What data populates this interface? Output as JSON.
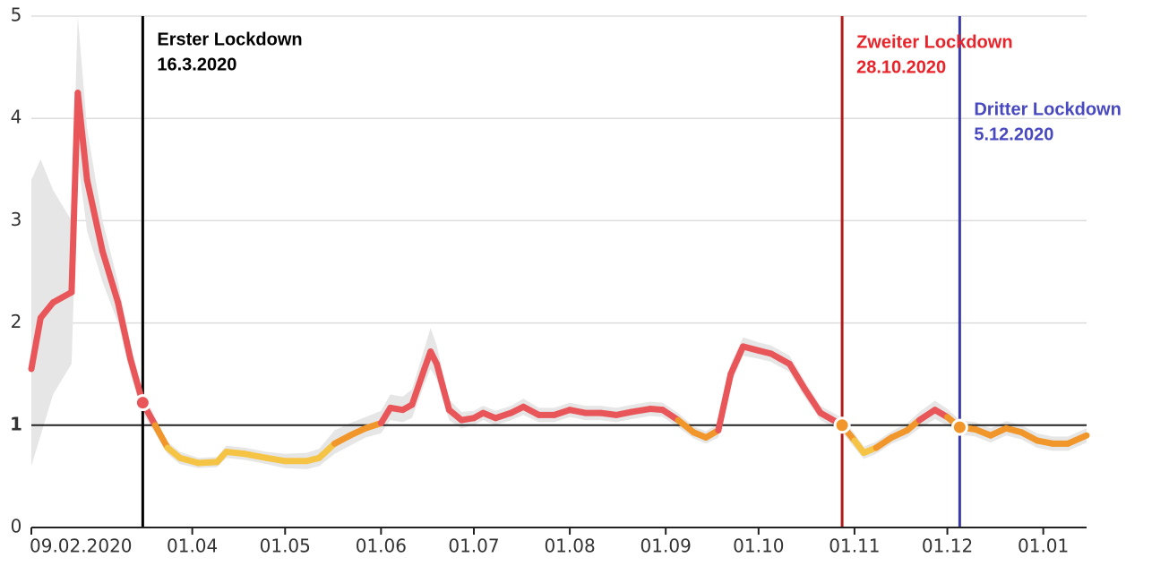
{
  "chart_data": {
    "type": "line",
    "x": [
      "2020-02-09",
      "2020-02-12",
      "2020-02-16",
      "2020-02-22",
      "2020-02-24",
      "2020-02-27",
      "2020-03-03",
      "2020-03-08",
      "2020-03-12",
      "2020-03-16",
      "2020-03-20",
      "2020-03-24",
      "2020-03-28",
      "2020-04-03",
      "2020-04-09",
      "2020-04-12",
      "2020-04-18",
      "2020-04-25",
      "2020-05-01",
      "2020-05-08",
      "2020-05-12",
      "2020-05-17",
      "2020-05-22",
      "2020-05-27",
      "2020-06-01",
      "2020-06-04",
      "2020-06-08",
      "2020-06-11",
      "2020-06-15",
      "2020-06-17",
      "2020-06-19",
      "2020-06-23",
      "2020-06-27",
      "2020-07-01",
      "2020-07-04",
      "2020-07-08",
      "2020-07-13",
      "2020-07-17",
      "2020-07-22",
      "2020-07-27",
      "2020-08-01",
      "2020-08-06",
      "2020-08-11",
      "2020-08-16",
      "2020-08-21",
      "2020-08-27",
      "2020-08-31",
      "2020-09-05",
      "2020-09-10",
      "2020-09-14",
      "2020-09-18",
      "2020-09-22",
      "2020-09-26",
      "2020-10-01",
      "2020-10-05",
      "2020-10-08",
      "2020-10-11",
      "2020-10-16",
      "2020-10-21",
      "2020-10-28",
      "2020-11-01",
      "2020-11-04",
      "2020-11-08",
      "2020-11-13",
      "2020-11-18",
      "2020-11-22",
      "2020-11-27",
      "2020-12-01",
      "2020-12-05",
      "2020-12-10",
      "2020-12-15",
      "2020-12-20",
      "2020-12-25",
      "2020-12-30",
      "2021-01-04",
      "2021-01-09",
      "2021-01-15"
    ],
    "values": [
      1.55,
      2.05,
      2.2,
      2.3,
      4.25,
      3.4,
      2.7,
      2.2,
      1.65,
      1.22,
      1.0,
      0.78,
      0.68,
      0.63,
      0.64,
      0.74,
      0.72,
      0.68,
      0.65,
      0.65,
      0.68,
      0.82,
      0.9,
      0.97,
      1.02,
      1.17,
      1.15,
      1.2,
      1.55,
      1.72,
      1.6,
      1.15,
      1.05,
      1.07,
      1.12,
      1.07,
      1.12,
      1.18,
      1.1,
      1.1,
      1.15,
      1.12,
      1.12,
      1.1,
      1.13,
      1.16,
      1.15,
      1.05,
      0.93,
      0.88,
      0.95,
      1.5,
      1.77,
      1.73,
      1.7,
      1.65,
      1.6,
      1.35,
      1.12,
      1.0,
      0.85,
      0.73,
      0.78,
      0.88,
      0.95,
      1.05,
      1.15,
      1.08,
      0.98,
      0.96,
      0.9,
      0.97,
      0.93,
      0.85,
      0.82,
      0.82,
      0.9
    ],
    "lower": [
      0.6,
      0.9,
      1.3,
      1.6,
      3.6,
      2.9,
      2.4,
      2.0,
      1.5,
      1.12,
      0.92,
      0.72,
      0.62,
      0.58,
      0.59,
      0.68,
      0.66,
      0.62,
      0.58,
      0.57,
      0.6,
      0.72,
      0.8,
      0.88,
      0.92,
      1.05,
      1.03,
      1.07,
      1.4,
      1.55,
      1.45,
      1.05,
      0.97,
      1.0,
      1.05,
      1.0,
      1.05,
      1.1,
      1.03,
      1.03,
      1.08,
      1.05,
      1.05,
      1.03,
      1.06,
      1.09,
      1.08,
      0.98,
      0.87,
      0.82,
      0.88,
      1.4,
      1.68,
      1.65,
      1.62,
      1.57,
      1.52,
      1.27,
      1.05,
      0.93,
      0.78,
      0.67,
      0.72,
      0.82,
      0.88,
      0.97,
      1.06,
      1.0,
      0.91,
      0.89,
      0.83,
      0.9,
      0.86,
      0.78,
      0.75,
      0.75,
      0.83
    ],
    "upper": [
      3.4,
      3.6,
      3.3,
      3.0,
      5.0,
      3.9,
      3.0,
      2.4,
      1.8,
      1.32,
      1.08,
      0.84,
      0.74,
      0.68,
      0.69,
      0.8,
      0.78,
      0.74,
      0.72,
      0.73,
      0.77,
      0.95,
      1.02,
      1.08,
      1.14,
      1.3,
      1.28,
      1.35,
      1.75,
      1.95,
      1.78,
      1.25,
      1.13,
      1.14,
      1.19,
      1.14,
      1.19,
      1.26,
      1.17,
      1.17,
      1.22,
      1.19,
      1.19,
      1.17,
      1.2,
      1.23,
      1.22,
      1.12,
      0.99,
      0.94,
      1.02,
      1.6,
      1.86,
      1.81,
      1.78,
      1.73,
      1.68,
      1.43,
      1.19,
      1.07,
      0.92,
      0.79,
      0.84,
      0.94,
      1.02,
      1.13,
      1.24,
      1.16,
      1.05,
      1.03,
      0.97,
      1.04,
      1.0,
      0.92,
      0.89,
      0.89,
      0.97
    ],
    "color_scale": [
      {
        "max": 0.8,
        "color": "#f5c445"
      },
      {
        "max": 1.05,
        "color": "#f0962a"
      },
      {
        "max": 10,
        "color": "#e8565a"
      }
    ],
    "band_color": "#e6e6e6",
    "xlim": [
      "2020-02-09",
      "2021-01-15"
    ],
    "xticks": [
      {
        "value": "2020-02-09",
        "label": "09.02.2020"
      },
      {
        "value": "2020-04-01",
        "label": "01.04"
      },
      {
        "value": "2020-05-01",
        "label": "01.05"
      },
      {
        "value": "2020-06-01",
        "label": "01.06"
      },
      {
        "value": "2020-07-01",
        "label": "01.07"
      },
      {
        "value": "2020-08-01",
        "label": "01.08"
      },
      {
        "value": "2020-09-01",
        "label": "01.09"
      },
      {
        "value": "2020-10-01",
        "label": "01.10"
      },
      {
        "value": "2020-11-01",
        "label": "01.11"
      },
      {
        "value": "2020-12-01",
        "label": "01.12"
      },
      {
        "value": "2021-01-01",
        "label": "01.01"
      }
    ],
    "ylim": [
      0,
      5
    ],
    "yticks": [
      0,
      1,
      2,
      3,
      4,
      5
    ],
    "grid": true,
    "reference_line": 1,
    "annotations": [
      {
        "x": "2020-03-16",
        "label": "Erster Lockdown",
        "date_label": "16.3.2020",
        "color": "#000000",
        "text_color": "#000000"
      },
      {
        "x": "2020-10-28",
        "label": "Zweiter Lockdown",
        "date_label": "28.10.2020",
        "color": "#b01c1c",
        "text_color": "#e8242a"
      },
      {
        "x": "2020-12-05",
        "label": "Dritter Lockdown",
        "date_label": "5.12.2020",
        "color": "#3a3aa8",
        "text_color": "#4848c0"
      }
    ]
  }
}
